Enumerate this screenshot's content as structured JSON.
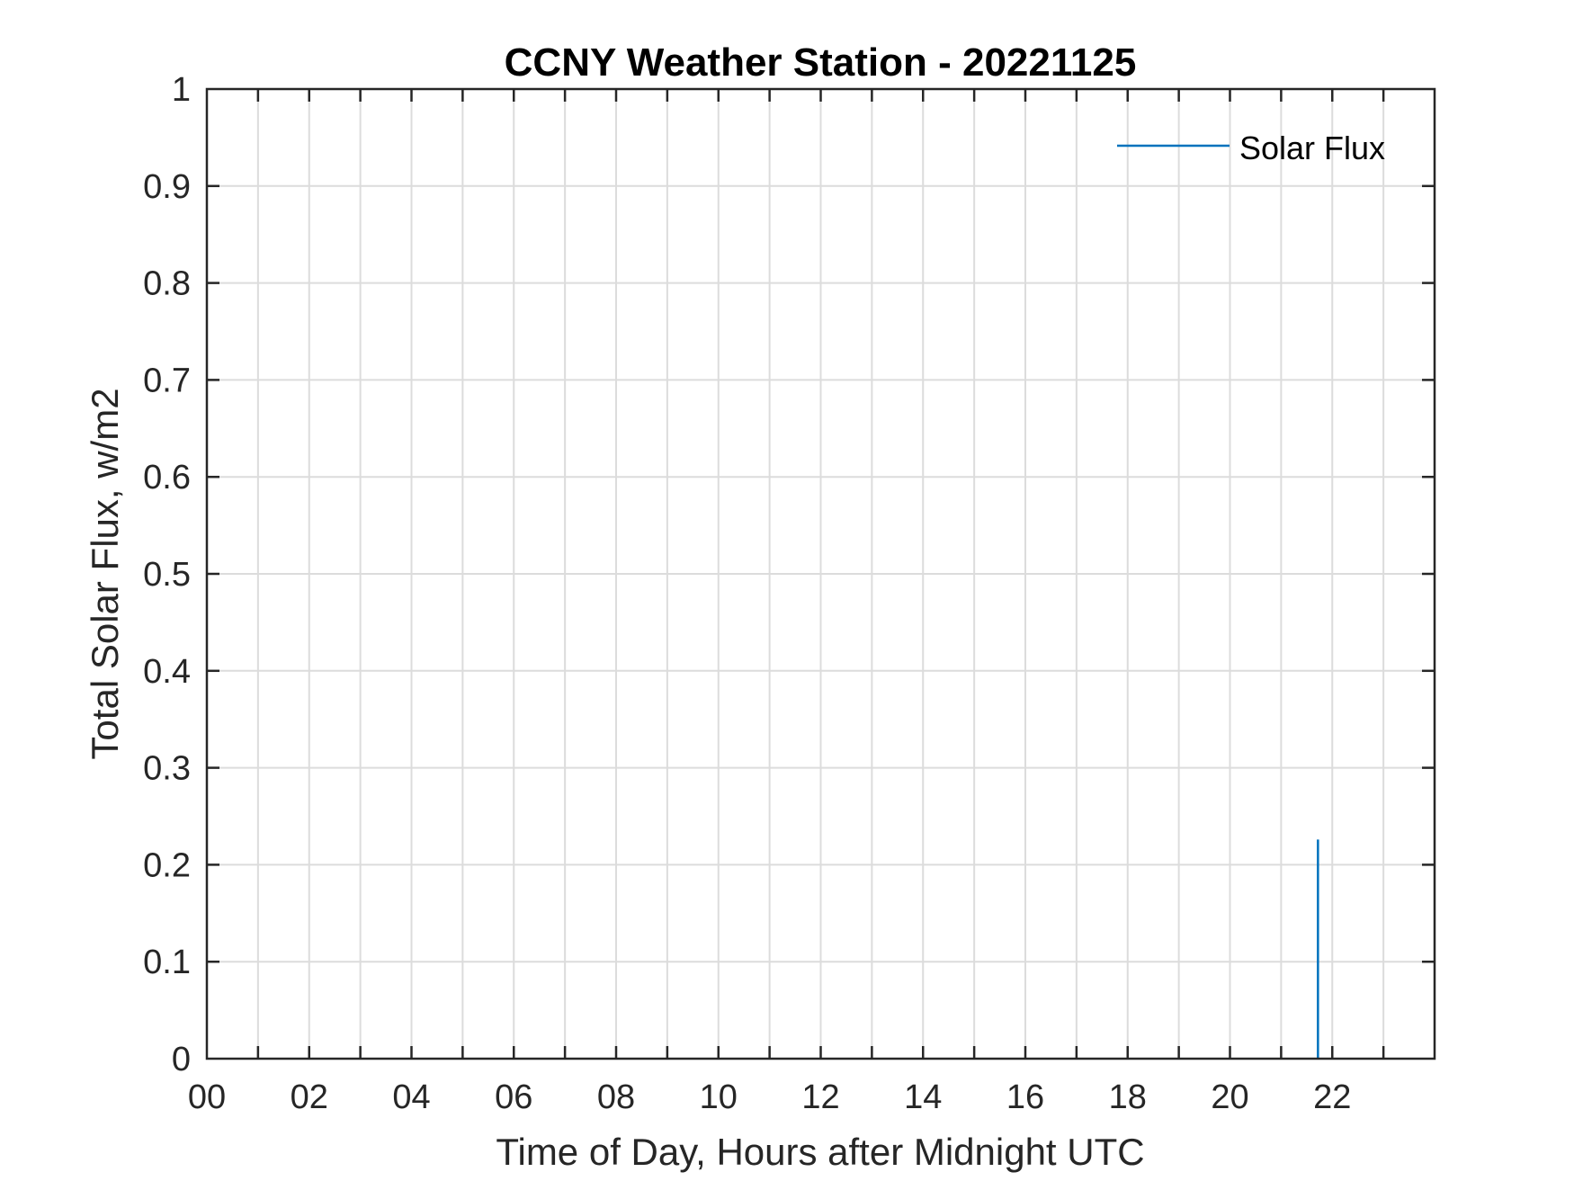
{
  "chart_data": {
    "type": "line",
    "title": "CCNY Weather Station - 20221125",
    "xlabel": "Time of Day, Hours after Midnight UTC",
    "ylabel": "Total Solar Flux, w/m2",
    "xlim": [
      0,
      24
    ],
    "ylim": [
      0,
      1
    ],
    "x_ticks": [
      0,
      2,
      4,
      6,
      8,
      10,
      12,
      14,
      16,
      18,
      20,
      22
    ],
    "x_tick_labels": [
      "00",
      "02",
      "04",
      "06",
      "08",
      "10",
      "12",
      "14",
      "16",
      "18",
      "20",
      "22"
    ],
    "x_grid_step": 1,
    "y_ticks": [
      0,
      0.1,
      0.2,
      0.3,
      0.4,
      0.5,
      0.6,
      0.7,
      0.8,
      0.9,
      1
    ],
    "y_tick_labels": [
      "0",
      "0.1",
      "0.2",
      "0.3",
      "0.4",
      "0.5",
      "0.6",
      "0.7",
      "0.8",
      "0.9",
      "1"
    ],
    "grid": true,
    "legend": {
      "position": "top-right",
      "entries": [
        "Solar Flux"
      ]
    },
    "series": [
      {
        "name": "Solar Flux",
        "color": "#0072BD",
        "x": [
          21.72,
          21.72,
          21.72
        ],
        "y": [
          0,
          0.226,
          0
        ]
      }
    ]
  },
  "colors": {
    "axis": "#262626",
    "grid": "#dcdcdc",
    "series": "#0072BD"
  }
}
